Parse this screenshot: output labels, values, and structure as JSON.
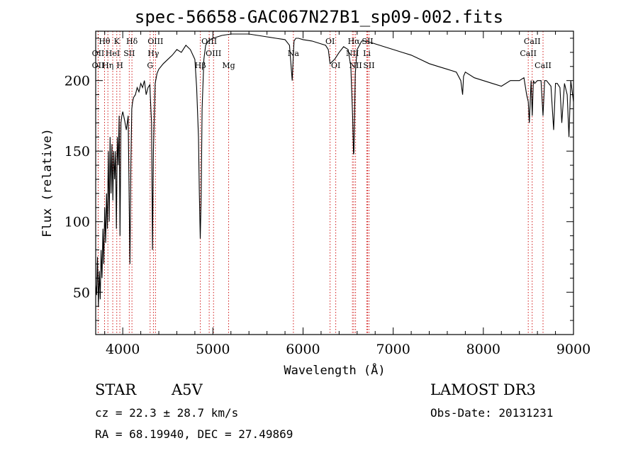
{
  "title": "spec-56658-GAC067N27B1_sp09-002.fits",
  "info": {
    "class": "STAR",
    "subclass": "A5V",
    "survey": "LAMOST DR3",
    "cz": "cz = 22.3 ± 28.7 km/s",
    "obs_date": "Obs-Date: 20131231",
    "radec": "RA =  68.19940, DEC =  27.49869"
  },
  "chart_data": {
    "type": "line",
    "title": "spec-56658-GAC067N27B1_sp09-002.fits",
    "xlabel": "Wavelength (Å)",
    "ylabel": "Flux (relative)",
    "xlim": [
      3700,
      9000
    ],
    "ylim": [
      20,
      235
    ],
    "xticks": [
      4000,
      5000,
      6000,
      7000,
      8000,
      9000
    ],
    "yticks": [
      50,
      100,
      150,
      200
    ],
    "line_color": "#000000",
    "marker_color": "#cc0000",
    "series": [
      {
        "name": "flux",
        "x": [
          3700,
          3710,
          3720,
          3730,
          3740,
          3750,
          3760,
          3770,
          3780,
          3790,
          3800,
          3810,
          3820,
          3830,
          3840,
          3850,
          3860,
          3870,
          3880,
          3890,
          3900,
          3910,
          3920,
          3930,
          3940,
          3950,
          3960,
          3970,
          3980,
          3990,
          4000,
          4020,
          4040,
          4060,
          4080,
          4090,
          4100,
          4110,
          4120,
          4140,
          4160,
          4180,
          4200,
          4220,
          4240,
          4260,
          4280,
          4300,
          4320,
          4330,
          4340,
          4350,
          4360,
          4380,
          4400,
          4450,
          4500,
          4550,
          4600,
          4650,
          4700,
          4750,
          4800,
          4820,
          4840,
          4850,
          4860,
          4870,
          4880,
          4900,
          4920,
          4950,
          5000,
          5100,
          5200,
          5300,
          5400,
          5500,
          5600,
          5700,
          5800,
          5850,
          5880,
          5890,
          5900,
          5920,
          5950,
          6000,
          6100,
          6200,
          6250,
          6280,
          6300,
          6350,
          6400,
          6450,
          6500,
          6530,
          6550,
          6560,
          6562,
          6565,
          6570,
          6580,
          6600,
          6650,
          6700,
          6750,
          6800,
          6900,
          7000,
          7100,
          7200,
          7300,
          7400,
          7500,
          7600,
          7700,
          7750,
          7770,
          7780,
          7800,
          7900,
          8000,
          8100,
          8200,
          8300,
          8400,
          8450,
          8480,
          8498,
          8510,
          8530,
          8542,
          8555,
          8570,
          8600,
          8640,
          8662,
          8680,
          8700,
          8750,
          8780,
          8800,
          8820,
          8850,
          8870,
          8900,
          8930,
          8950,
          8970,
          9000
        ],
        "y": [
          55,
          48,
          75,
          40,
          65,
          45,
          80,
          60,
          95,
          70,
          110,
          85,
          120,
          95,
          150,
          100,
          160,
          120,
          155,
          115,
          150,
          130,
          150,
          95,
          160,
          140,
          175,
          90,
          170,
          175,
          178,
          172,
          165,
          175,
          70,
          140,
          180,
          185,
          188,
          190,
          195,
          192,
          198,
          195,
          200,
          190,
          195,
          197,
          170,
          80,
          150,
          175,
          198,
          205,
          208,
          212,
          215,
          218,
          222,
          220,
          225,
          222,
          215,
          195,
          160,
          120,
          88,
          118,
          180,
          215,
          225,
          228,
          230,
          232,
          233,
          233,
          233,
          232,
          231,
          230,
          229,
          225,
          200,
          215,
          228,
          230,
          230,
          229,
          228,
          226,
          225,
          222,
          212,
          215,
          220,
          224,
          222,
          210,
          175,
          148,
          148,
          150,
          170,
          205,
          222,
          228,
          228,
          227,
          226,
          224,
          222,
          220,
          218,
          215,
          212,
          210,
          208,
          206,
          200,
          190,
          203,
          206,
          202,
          200,
          198,
          196,
          200,
          200,
          202,
          190,
          185,
          170,
          200,
          175,
          200,
          198,
          200,
          200,
          175,
          200,
          200,
          196,
          165,
          198,
          198,
          195,
          170,
          198,
          190,
          160,
          200,
          185
        ]
      }
    ],
    "line_markers": [
      {
        "name": "OII",
        "wavelength": 3727,
        "label_row": 2
      },
      {
        "name": "Hθ",
        "wavelength": 3798,
        "label_row": 0
      },
      {
        "name": "OII",
        "wavelength": 3727,
        "label_row": 1
      },
      {
        "name": "HeI",
        "wavelength": 3889,
        "label_row": 1
      },
      {
        "name": "Hη",
        "wavelength": 3835,
        "label_row": 2
      },
      {
        "name": "K",
        "wavelength": 3934,
        "label_row": 0
      },
      {
        "name": "SII",
        "wavelength": 4072,
        "label_row": 1
      },
      {
        "name": "H",
        "wavelength": 3968,
        "label_row": 2
      },
      {
        "name": "Hδ",
        "wavelength": 4102,
        "label_row": 0
      },
      {
        "name": "OIII",
        "wavelength": 4363,
        "label_row": 0
      },
      {
        "name": "Hγ",
        "wavelength": 4340,
        "label_row": 1
      },
      {
        "name": "G",
        "wavelength": 4304,
        "label_row": 2
      },
      {
        "name": "Hβ",
        "wavelength": 4861,
        "label_row": 2
      },
      {
        "name": "OIII",
        "wavelength": 4959,
        "label_row": 0
      },
      {
        "name": "OIII",
        "wavelength": 5007,
        "label_row": 1
      },
      {
        "name": "Mg",
        "wavelength": 5175,
        "label_row": 2
      },
      {
        "name": "Na",
        "wavelength": 5893,
        "label_row": 1
      },
      {
        "name": "OI",
        "wavelength": 6300,
        "label_row": 0
      },
      {
        "name": "OI",
        "wavelength": 6363,
        "label_row": 2
      },
      {
        "name": "Hα",
        "wavelength": 6563,
        "label_row": 0
      },
      {
        "name": "NII",
        "wavelength": 6548,
        "label_row": 1
      },
      {
        "name": "NII",
        "wavelength": 6583,
        "label_row": 2
      },
      {
        "name": "SII",
        "wavelength": 6716,
        "label_row": 0
      },
      {
        "name": "Li",
        "wavelength": 6708,
        "label_row": 1
      },
      {
        "name": "SII",
        "wavelength": 6731,
        "label_row": 2
      },
      {
        "name": "CaII",
        "wavelength": 8498,
        "label_row": 1
      },
      {
        "name": "CaII",
        "wavelength": 8542,
        "label_row": 0
      },
      {
        "name": "CaII",
        "wavelength": 8662,
        "label_row": 2
      }
    ]
  }
}
